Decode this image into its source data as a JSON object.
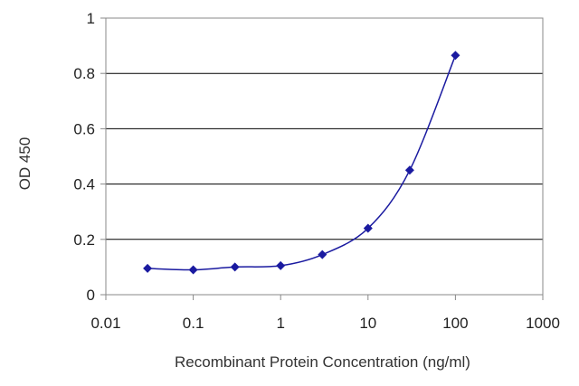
{
  "chart_data": {
    "type": "line",
    "title": "",
    "xlabel": "Recombinant Protein Concentration (ng/ml)",
    "ylabel": "OD 450",
    "x_scale": "log",
    "xlim": [
      0.01,
      1000
    ],
    "ylim": [
      0,
      1
    ],
    "x_ticks": [
      "0.01",
      "0.1",
      "1",
      "10",
      "100",
      "1000"
    ],
    "y_ticks": [
      "0",
      "0.2",
      "0.4",
      "0.6",
      "0.8",
      "1"
    ],
    "grid": "horizontal",
    "legend": "none",
    "series": [
      {
        "x": [
          0.03,
          0.1,
          0.3,
          1,
          3,
          10,
          30,
          100
        ],
        "y": [
          0.095,
          0.09,
          0.1,
          0.105,
          0.145,
          0.24,
          0.45,
          0.865
        ]
      }
    ],
    "colors": {
      "series": "#1a1aa0",
      "grid": "#000000",
      "frame": "#888888"
    }
  }
}
